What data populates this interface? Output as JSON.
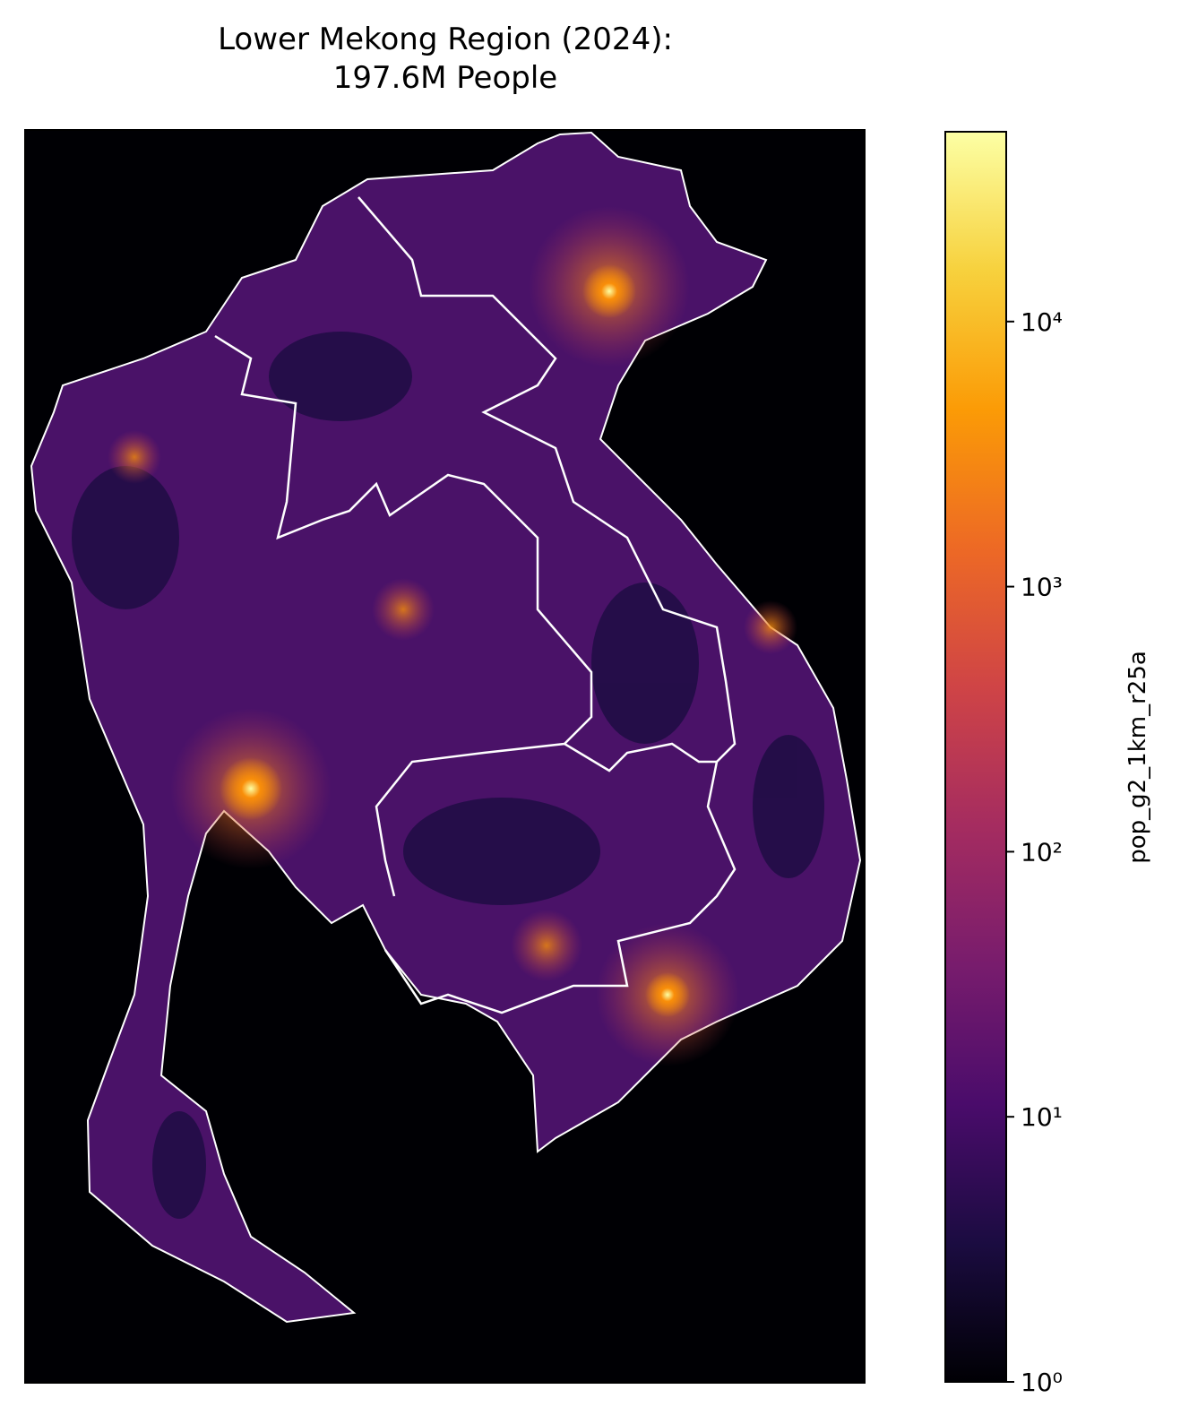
{
  "chart_data": {
    "type": "map",
    "title": [
      "Lower Mekong Region (2024):",
      "197.6M People"
    ],
    "colorbar": {
      "label": "pop_g2_1km_r25a",
      "scale": "log",
      "colormap": "inferno",
      "lim": [
        1,
        52000
      ],
      "ticks": [
        {
          "value": 1,
          "label": "10⁰"
        },
        {
          "value": 10,
          "label": "10¹"
        },
        {
          "value": 100,
          "label": "10²"
        },
        {
          "value": 1000,
          "label": "10³"
        },
        {
          "value": 10000,
          "label": "10⁴"
        }
      ]
    }
  }
}
